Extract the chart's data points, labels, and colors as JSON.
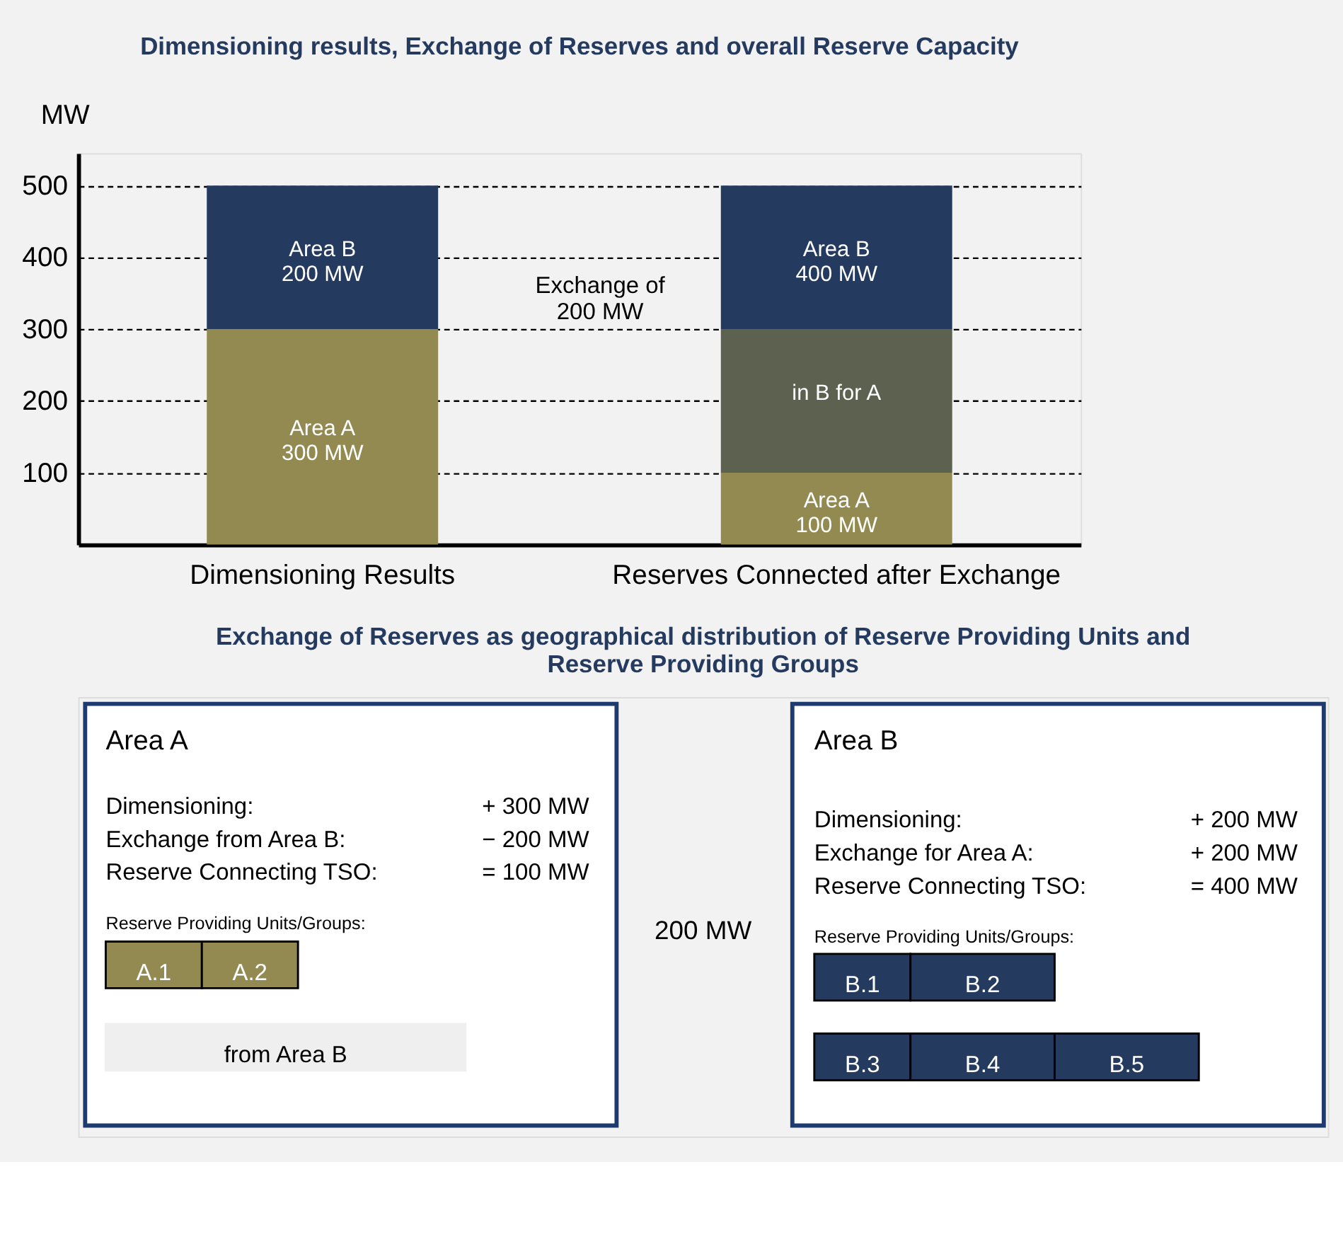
{
  "chart_data": [
    {
      "type": "bar",
      "title": "Dimensioning results, Exchange of Reserves and overall Reserve Capacity",
      "ylabel": "MW",
      "categories": [
        "Dimensioning Results",
        "Reserves Connected after Exchange"
      ],
      "stacked": true,
      "series": [
        {
          "color": "#938a52",
          "values": [
            300,
            100
          ],
          "value_labels": [
            "Area A\n300 MW",
            "Area A\n100 MW"
          ]
        },
        {
          "color": "#5c6150",
          "values": [
            null,
            200
          ],
          "value_labels": [
            null,
            "in B for A"
          ]
        },
        {
          "color": "#243a5e",
          "values": [
            200,
            200
          ],
          "value_labels": [
            "Area B\n200 MW",
            "Area B\n400 MW"
          ]
        }
      ],
      "ylim": [
        0,
        545
      ],
      "yticks": [
        100,
        200,
        300,
        400,
        500
      ],
      "grid": "y",
      "annotations": [
        "Exchange of\n200 MW"
      ]
    },
    {
      "type": "other",
      "title": "Exchange of Reserves as geographical distribution of Reserve Providing Units and\nReserve Providing Groups",
      "annotations": [
        "Area A",
        "Dimensioning:",
        "+ 300 MW",
        "Exchange from Area B:",
        "− 200 MW",
        "Reserve Connecting TSO:",
        "= 100 MW",
        "Reserve Providing Units/Groups:",
        "A.1",
        "A.2",
        "from Area B",
        "200 MW",
        "Area B",
        "Dimensioning:",
        "+ 200 MW",
        "Exchange for Area A:",
        "+ 200 MW",
        "Reserve Connecting TSO:",
        "= 400 MW",
        "Reserve Providing Units/Groups:",
        "B.1",
        "B.2",
        "B.3",
        "B.4",
        "B.5"
      ]
    }
  ]
}
